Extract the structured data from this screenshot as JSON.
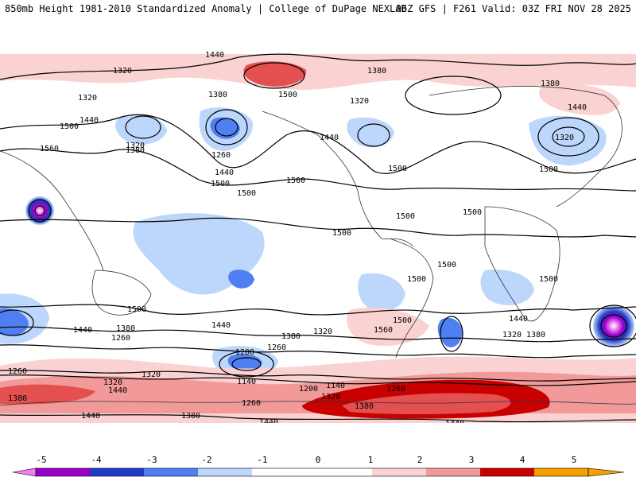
{
  "header": {
    "title_left": "850mb Height 1981-2010 Standardized Anomaly | College of DuPage NEXLAB",
    "title_right": "06Z GFS | F261 Valid: 03Z FRI NOV 28 2025"
  },
  "map": {
    "contour_labels": [
      "1440",
      "1320",
      "1500",
      "1380",
      "1320",
      "1440",
      "1500",
      "1560",
      "1380",
      "1260",
      "1440",
      "1500",
      "1560",
      "1500",
      "1440",
      "1320",
      "1320",
      "1380",
      "1380",
      "1440",
      "1500",
      "1320",
      "1500",
      "1500",
      "1500",
      "1500",
      "1500",
      "1500",
      "1500",
      "1500",
      "1440",
      "1380",
      "1260",
      "1380",
      "1320",
      "1440",
      "1560",
      "1500",
      "1320",
      "1380",
      "1440",
      "1260",
      "1200",
      "1320",
      "1140",
      "1260",
      "1200",
      "1140",
      "1320",
      "1260",
      "1260",
      "1380",
      "1380",
      "1320",
      "1440",
      "1380",
      "1440",
      "1440",
      "1440"
    ],
    "palette": {
      "neg5": "#f07ff0",
      "neg4": "#9a00c8",
      "neg3": "#1e3cc8",
      "neg2": "#4f7ff0",
      "neg1": "#bcd7fb",
      "pos1": "#fbd2d2",
      "pos2": "#f29a9a",
      "pos3": "#e45050",
      "pos4": "#c80000",
      "pos5": "#f5a000"
    },
    "anomaly_features": [
      {
        "name": "arctic-positive-band",
        "level": 1
      },
      {
        "name": "north-pacific-low",
        "level": -2
      },
      {
        "name": "aleutian-high",
        "level": 3
      },
      {
        "name": "east-asia-low",
        "level": -1
      },
      {
        "name": "eastern-pacific-typhoon",
        "level": -5
      },
      {
        "name": "south-indian-low",
        "level": -5
      },
      {
        "name": "southern-ocean-positive",
        "level": 4
      }
    ]
  },
  "colorbar": {
    "labels": [
      "-5",
      "-4",
      "-3",
      "-2",
      "-1",
      "0",
      "1",
      "2",
      "3",
      "4",
      "5"
    ]
  }
}
